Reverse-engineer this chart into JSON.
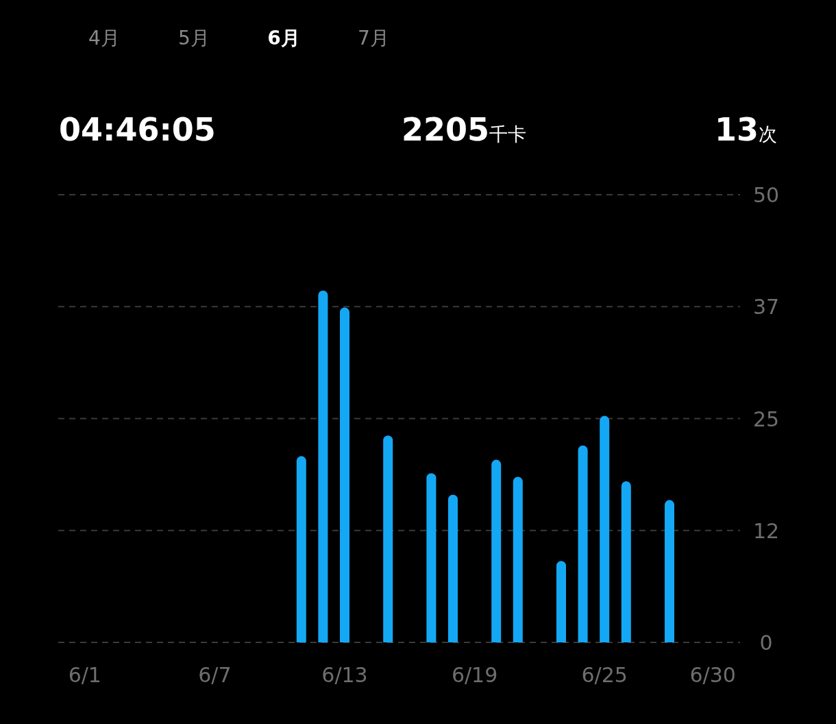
{
  "chart_data": {
    "type": "bar",
    "annotations": [
      "4月",
      "5月",
      "6月",
      "7月",
      "04:46:05",
      "2205千卡",
      "13次"
    ],
    "categories": [
      "6/1",
      null,
      null,
      null,
      null,
      null,
      "6/7",
      null,
      null,
      null,
      null,
      null,
      "6/13",
      null,
      null,
      null,
      null,
      null,
      "6/19",
      null,
      null,
      null,
      null,
      null,
      "6/25",
      null,
      null,
      null,
      null,
      "6/30"
    ],
    "values": [
      null,
      null,
      null,
      null,
      null,
      null,
      null,
      null,
      null,
      null,
      20.8,
      39.3,
      37.4,
      null,
      23.1,
      null,
      18.9,
      16.5,
      null,
      20.4,
      18.5,
      null,
      9.1,
      22.0,
      25.3,
      18.0,
      null,
      15.9,
      null,
      null
    ],
    "color": "#14a8f4",
    "ylim": [
      0,
      50
    ],
    "yticks": [
      0,
      {
        "value": 12.5,
        "label": "12"
      },
      25,
      {
        "value": 37.5,
        "label": "37"
      },
      50
    ],
    "grid": "y"
  }
}
